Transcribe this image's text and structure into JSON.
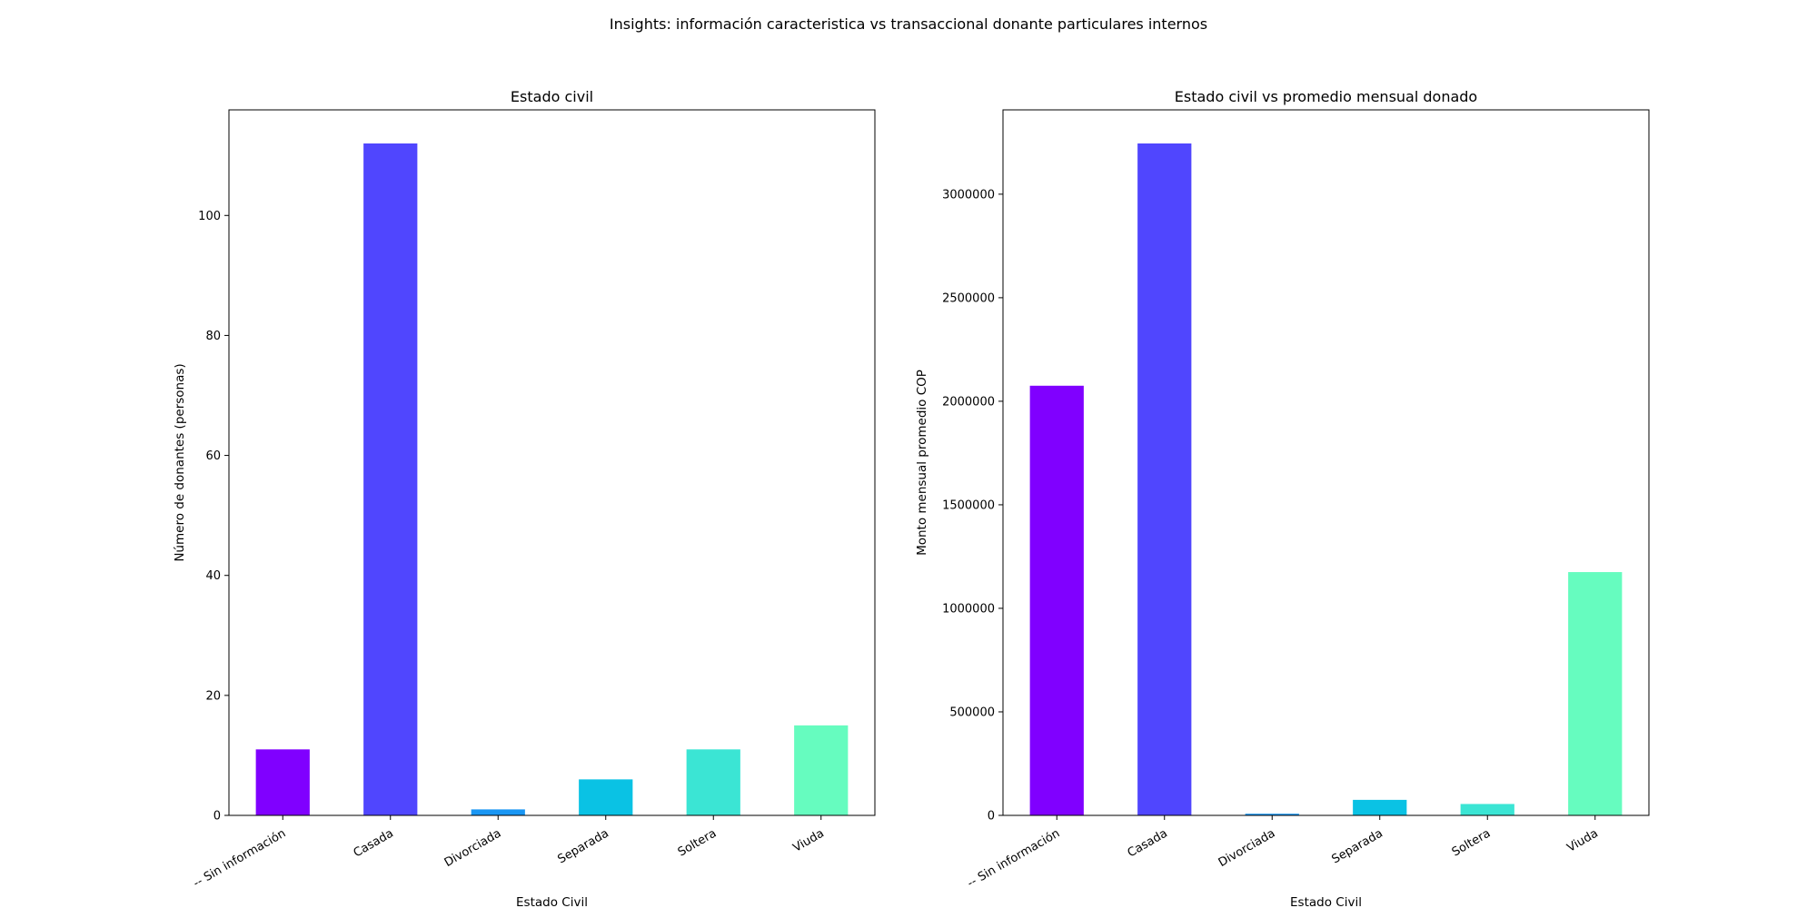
{
  "figure": {
    "title": "Insights: información caracteristica vs transaccional donante particulares internos"
  },
  "chart_data": [
    {
      "type": "bar",
      "title": "Estado civil",
      "xlabel": "Estado Civil",
      "ylabel": "Número de donantes (personas)",
      "categories": [
        "-- Sin información",
        "Casada",
        "Divorciada",
        "Separada",
        "Soltera",
        "Viuda"
      ],
      "values": [
        11,
        112,
        1,
        6,
        11,
        15
      ],
      "colors": [
        "#8000ff",
        "#5046fe",
        "#1996f3",
        "#0ac2e4",
        "#3be5d4",
        "#66fcbf"
      ],
      "ylim": [
        0,
        117.6
      ],
      "yticks": [
        0,
        20,
        40,
        60,
        80,
        100
      ],
      "grid": false,
      "legend": "none"
    },
    {
      "type": "bar",
      "title": "Estado civil vs promedio mensual donado",
      "xlabel": "Estado Civil",
      "ylabel": "Monto mensual promedio COP",
      "categories": [
        "-- Sin información",
        "Casada",
        "Divorciada",
        "Separada",
        "Soltera",
        "Viuda"
      ],
      "values": [
        2075000,
        3245000,
        8000,
        75000,
        55000,
        1175000
      ],
      "colors": [
        "#8000ff",
        "#5046fe",
        "#1996f3",
        "#0ac2e4",
        "#3be5d4",
        "#66fcbf"
      ],
      "ylim": [
        0,
        3407250
      ],
      "yticks": [
        0,
        500000,
        1000000,
        1500000,
        2000000,
        2500000,
        3000000
      ],
      "grid": false,
      "legend": "none"
    }
  ]
}
